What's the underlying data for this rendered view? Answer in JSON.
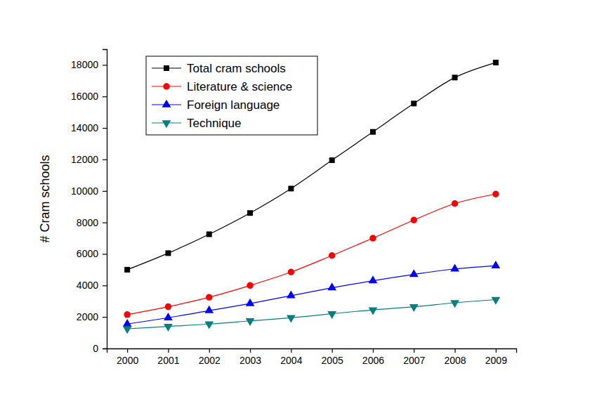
{
  "chart_data": {
    "type": "line",
    "y_label": "# Cram schools",
    "x": [
      2000,
      2001,
      2002,
      2003,
      2004,
      2005,
      2006,
      2007,
      2008,
      2009
    ],
    "xlim": [
      1999.5,
      2009.5
    ],
    "xticks": [
      2000,
      2001,
      2002,
      2003,
      2004,
      2005,
      2006,
      2007,
      2008,
      2009
    ],
    "ylim": [
      0,
      19000
    ],
    "yticks": [
      0,
      2000,
      4000,
      6000,
      8000,
      10000,
      12000,
      14000,
      16000,
      18000
    ],
    "grid": false,
    "legend": "upper left",
    "series": [
      {
        "name": "Total cram schools",
        "color": "#000000",
        "marker": "square",
        "line_style": "solid",
        "values": [
          5000,
          6050,
          7250,
          8600,
          10150,
          11950,
          13750,
          15550,
          17200,
          18150
        ]
      },
      {
        "name": "Literature & science",
        "color": "#ff0000",
        "marker": "circle",
        "line_style": "solid",
        "values": [
          2150,
          2650,
          3250,
          4000,
          4850,
          5900,
          7000,
          8150,
          9200,
          9800
        ]
      },
      {
        "name": "Foreign language",
        "color": "#0000ff",
        "marker": "triangle",
        "line_style": "solid",
        "values": [
          1550,
          1950,
          2400,
          2850,
          3350,
          3850,
          4300,
          4700,
          5050,
          5250
        ]
      },
      {
        "name": "Technique",
        "color": "#008080",
        "marker": "triangle-down",
        "line_style": "solid",
        "values": [
          1250,
          1400,
          1550,
          1750,
          1950,
          2200,
          2450,
          2650,
          2900,
          3100
        ]
      }
    ]
  }
}
